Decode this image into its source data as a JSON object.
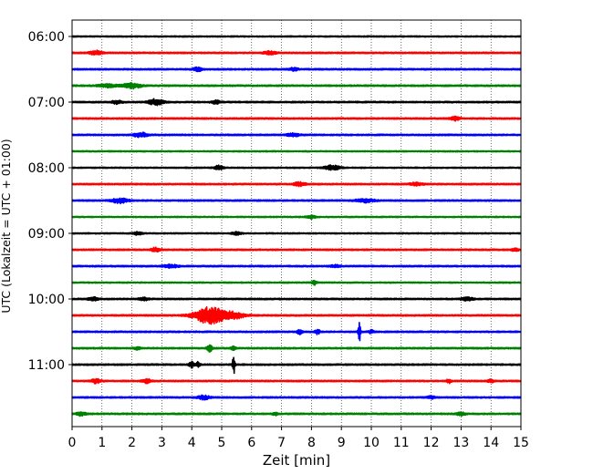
{
  "chart_data": {
    "type": "line",
    "title": "",
    "xlabel": "Zeit  [min]",
    "ylabel": "UTC (Lokalzeit = UTC + 01:00)",
    "xlim": [
      0,
      15
    ],
    "x_ticks": [
      "0",
      "1",
      "2",
      "3",
      "4",
      "5",
      "6",
      "7",
      "8",
      "9",
      "10",
      "11",
      "12",
      "13",
      "14",
      "15"
    ],
    "y_tick_labels": [
      "06:00",
      "07:00",
      "08:00",
      "09:00",
      "10:00",
      "11:00"
    ],
    "trace_interval_minutes": 15,
    "grid": "vertical dotted lines at each minute",
    "trace_colors": [
      "#000000",
      "#ff0000",
      "#0000ff",
      "#008000"
    ],
    "traces": [
      {
        "start": "06:00",
        "color": "#000000",
        "amp": 0.2,
        "events": []
      },
      {
        "start": "06:15",
        "color": "#ff0000",
        "amp": 0.25,
        "events": [
          {
            "t": 0.8,
            "a": 0.7,
            "w": 0.2
          },
          {
            "t": 6.6,
            "a": 0.5,
            "w": 0.2
          }
        ]
      },
      {
        "start": "06:30",
        "color": "#0000ff",
        "amp": 0.25,
        "events": [
          {
            "t": 4.2,
            "a": 0.6,
            "w": 0.15
          },
          {
            "t": 7.4,
            "a": 0.5,
            "w": 0.15
          }
        ]
      },
      {
        "start": "06:45",
        "color": "#008000",
        "amp": 0.25,
        "events": [
          {
            "t": 1.2,
            "a": 0.5,
            "w": 0.3
          },
          {
            "t": 2.0,
            "a": 0.9,
            "w": 0.3
          }
        ]
      },
      {
        "start": "07:00",
        "color": "#000000",
        "amp": 0.25,
        "events": [
          {
            "t": 1.5,
            "a": 0.6,
            "w": 0.15
          },
          {
            "t": 2.8,
            "a": 1.0,
            "w": 0.25
          },
          {
            "t": 4.8,
            "a": 0.5,
            "w": 0.15
          }
        ]
      },
      {
        "start": "07:15",
        "color": "#ff0000",
        "amp": 0.25,
        "events": [
          {
            "t": 12.8,
            "a": 0.6,
            "w": 0.15
          }
        ]
      },
      {
        "start": "07:30",
        "color": "#0000ff",
        "amp": 0.25,
        "events": [
          {
            "t": 2.3,
            "a": 0.7,
            "w": 0.25
          },
          {
            "t": 7.4,
            "a": 0.5,
            "w": 0.2
          }
        ]
      },
      {
        "start": "07:45",
        "color": "#008000",
        "amp": 0.2,
        "events": []
      },
      {
        "start": "08:00",
        "color": "#000000",
        "amp": 0.2,
        "events": [
          {
            "t": 4.9,
            "a": 0.7,
            "w": 0.15
          },
          {
            "t": 8.7,
            "a": 0.8,
            "w": 0.25
          }
        ]
      },
      {
        "start": "08:15",
        "color": "#ff0000",
        "amp": 0.25,
        "events": [
          {
            "t": 7.6,
            "a": 0.6,
            "w": 0.2
          },
          {
            "t": 11.5,
            "a": 0.5,
            "w": 0.2
          }
        ]
      },
      {
        "start": "08:30",
        "color": "#0000ff",
        "amp": 0.25,
        "events": [
          {
            "t": 1.6,
            "a": 0.9,
            "w": 0.25
          },
          {
            "t": 9.8,
            "a": 0.6,
            "w": 0.3
          }
        ]
      },
      {
        "start": "08:45",
        "color": "#008000",
        "amp": 0.2,
        "events": [
          {
            "t": 8.0,
            "a": 0.5,
            "w": 0.15
          }
        ]
      },
      {
        "start": "09:00",
        "color": "#000000",
        "amp": 0.2,
        "events": [
          {
            "t": 2.2,
            "a": 0.5,
            "w": 0.15
          },
          {
            "t": 5.5,
            "a": 0.5,
            "w": 0.15
          }
        ]
      },
      {
        "start": "09:15",
        "color": "#ff0000",
        "amp": 0.25,
        "events": [
          {
            "t": 2.8,
            "a": 0.7,
            "w": 0.15
          },
          {
            "t": 14.8,
            "a": 0.6,
            "w": 0.1
          }
        ]
      },
      {
        "start": "09:30",
        "color": "#0000ff",
        "amp": 0.25,
        "events": [
          {
            "t": 3.3,
            "a": 0.5,
            "w": 0.25
          },
          {
            "t": 8.8,
            "a": 0.4,
            "w": 0.15
          }
        ]
      },
      {
        "start": "09:45",
        "color": "#008000",
        "amp": 0.2,
        "events": [
          {
            "t": 8.1,
            "a": 0.8,
            "w": 0.08
          }
        ]
      },
      {
        "start": "10:00",
        "color": "#000000",
        "amp": 0.25,
        "events": [
          {
            "t": 0.7,
            "a": 0.6,
            "w": 0.15
          },
          {
            "t": 2.4,
            "a": 0.5,
            "w": 0.15
          },
          {
            "t": 13.2,
            "a": 0.5,
            "w": 0.2
          }
        ]
      },
      {
        "start": "10:15",
        "color": "#ff0000",
        "amp": 0.25,
        "events": [
          {
            "t": 4.6,
            "a": 2.8,
            "w": 0.5
          },
          {
            "t": 5.4,
            "a": 1.0,
            "w": 0.4
          }
        ]
      },
      {
        "start": "10:30",
        "color": "#0000ff",
        "amp": 0.25,
        "events": [
          {
            "t": 7.6,
            "a": 0.8,
            "w": 0.08
          },
          {
            "t": 8.2,
            "a": 0.8,
            "w": 0.08
          },
          {
            "t": 9.6,
            "a": 3.3,
            "w": 0.04
          },
          {
            "t": 10.0,
            "a": 0.6,
            "w": 0.08
          }
        ]
      },
      {
        "start": "10:45",
        "color": "#008000",
        "amp": 0.25,
        "events": [
          {
            "t": 2.2,
            "a": 0.5,
            "w": 0.1
          },
          {
            "t": 4.6,
            "a": 1.2,
            "w": 0.08
          },
          {
            "t": 5.4,
            "a": 0.6,
            "w": 0.08
          }
        ]
      },
      {
        "start": "11:00",
        "color": "#000000",
        "amp": 0.25,
        "events": [
          {
            "t": 4.0,
            "a": 1.0,
            "w": 0.08
          },
          {
            "t": 4.2,
            "a": 0.8,
            "w": 0.08
          },
          {
            "t": 5.4,
            "a": 3.5,
            "w": 0.04
          }
        ]
      },
      {
        "start": "11:15",
        "color": "#ff0000",
        "amp": 0.25,
        "events": [
          {
            "t": 0.8,
            "a": 0.8,
            "w": 0.15
          },
          {
            "t": 2.5,
            "a": 0.6,
            "w": 0.15
          },
          {
            "t": 12.6,
            "a": 0.7,
            "w": 0.08
          },
          {
            "t": 14.0,
            "a": 0.5,
            "w": 0.1
          }
        ]
      },
      {
        "start": "11:30",
        "color": "#0000ff",
        "amp": 0.25,
        "events": [
          {
            "t": 4.4,
            "a": 0.7,
            "w": 0.2
          },
          {
            "t": 12.0,
            "a": 0.4,
            "w": 0.15
          }
        ]
      },
      {
        "start": "11:45",
        "color": "#008000",
        "amp": 0.25,
        "events": [
          {
            "t": 0.3,
            "a": 0.6,
            "w": 0.15
          },
          {
            "t": 6.8,
            "a": 0.6,
            "w": 0.08
          },
          {
            "t": 13.0,
            "a": 0.5,
            "w": 0.15
          }
        ]
      }
    ]
  }
}
